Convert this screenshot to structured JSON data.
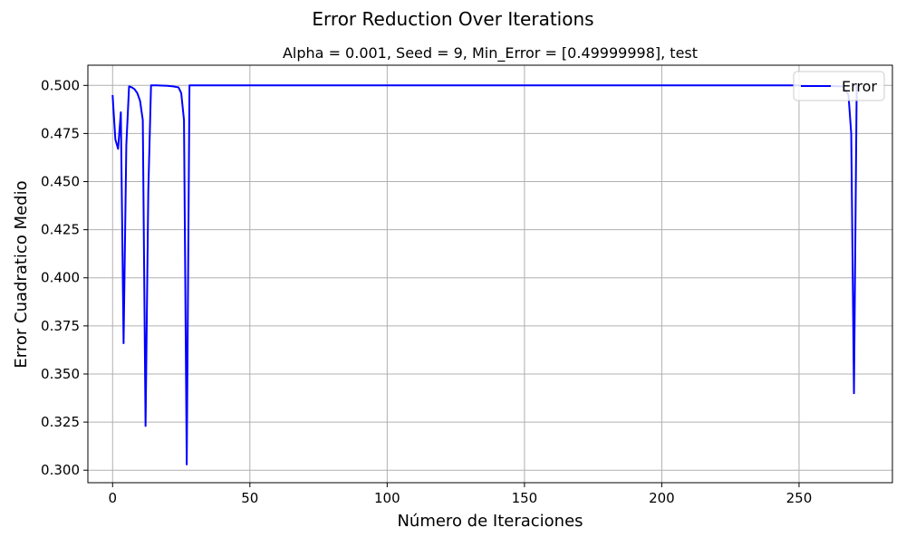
{
  "chart_data": {
    "type": "line",
    "suptitle": "Error Reduction Over Iterations",
    "title": "Alpha = 0.001, Seed = 9, Min_Error = [0.49999998], test",
    "xlabel": "Número de Iteraciones",
    "ylabel": "Error Cuadratico Medio",
    "xlim": [
      -9,
      284
    ],
    "ylim": [
      0.2935,
      0.5105
    ],
    "xticks": [
      0,
      50,
      100,
      150,
      200,
      250
    ],
    "yticks": [
      0.3,
      0.325,
      0.35,
      0.375,
      0.4,
      0.425,
      0.45,
      0.475,
      0.5
    ],
    "ytick_labels": [
      "0.300",
      "0.325",
      "0.350",
      "0.375",
      "0.400",
      "0.425",
      "0.450",
      "0.475",
      "0.500"
    ],
    "grid": true,
    "legend_position": "upper right",
    "series": [
      {
        "name": "Error",
        "color": "#0000ff",
        "x": [
          0,
          1,
          2,
          3,
          4,
          5,
          6,
          7,
          8,
          9,
          10,
          11,
          12,
          13,
          14,
          15,
          16,
          18,
          20,
          22,
          24,
          25,
          26,
          27,
          28,
          29,
          30,
          50,
          100,
          150,
          200,
          250,
          266,
          268,
          269,
          270,
          271
        ],
        "y": [
          0.495,
          0.472,
          0.467,
          0.486,
          0.366,
          0.469,
          0.4995,
          0.499,
          0.498,
          0.496,
          0.492,
          0.482,
          0.323,
          0.445,
          0.5,
          0.5,
          0.5,
          0.4999,
          0.4998,
          0.4995,
          0.499,
          0.496,
          0.482,
          0.303,
          0.5,
          0.5,
          0.5,
          0.5,
          0.5,
          0.5,
          0.5,
          0.5,
          0.4995,
          0.495,
          0.475,
          0.34,
          0.5
        ]
      }
    ]
  }
}
